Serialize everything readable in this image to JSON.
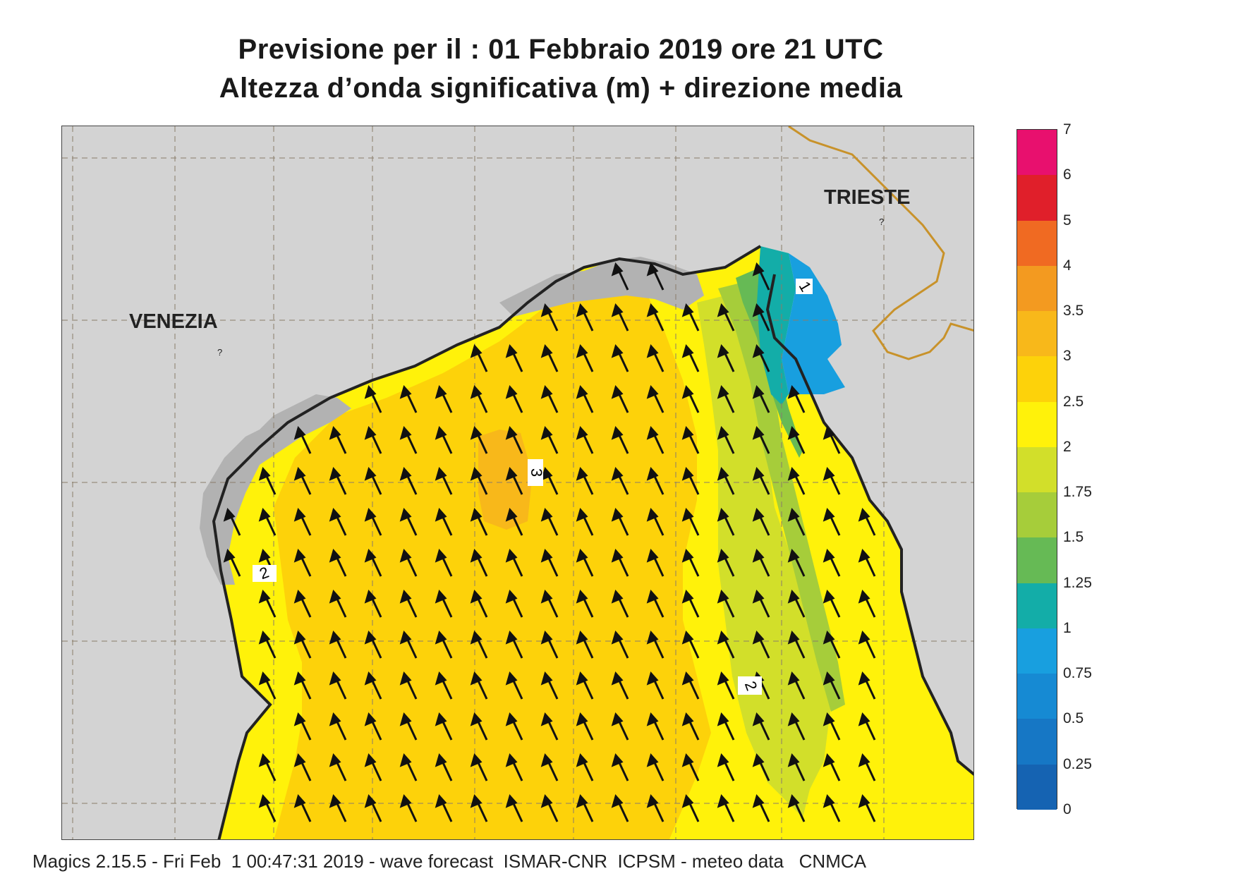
{
  "title_line1": "Previsione per il  :  01  Febbraio 2019   ore 21 UTC",
  "title_line2": "Altezza d’onda significativa (m) + direzione media",
  "footer": "Magics 2.15.5 - Fri Feb  1 00:47:31 2019 - wave forecast  ISMAR-CNR  ICPSM - meteo data   CNMCA",
  "cities": {
    "venezia": "VENEZIA",
    "trieste": "TRIESTE"
  },
  "contour_labels": [
    "3",
    "2",
    "2",
    "1"
  ],
  "land_marks": [
    "?",
    "?"
  ],
  "colorbar": {
    "labels": [
      "7",
      "6",
      "5",
      "4",
      "3.5",
      "3",
      "2.5",
      "2",
      "1.75",
      "1.5",
      "1.25",
      "1",
      "0.75",
      "0.5",
      "0.25",
      "0"
    ],
    "colors": [
      "#e8106e",
      "#e01f2a",
      "#f06a22",
      "#f39a20",
      "#f8b81a",
      "#fdd20a",
      "#fff20a",
      "#d2df2a",
      "#a6cd3a",
      "#66ba55",
      "#13ada8",
      "#189fdf",
      "#168ad3",
      "#1677c5",
      "#1563b2"
    ]
  },
  "map_colors": {
    "land": "#d3d3d3",
    "land_dark": "#b2b2b2",
    "sea_low": "#fff20a",
    "sea_mid": "#fdd20a",
    "sea_high": "#f8b81a",
    "band_175": "#d2df2a",
    "band_15": "#a6cd3a",
    "band_125": "#66ba55",
    "band_1": "#13ada8",
    "band_075": "#189fdf",
    "border": "#c8922a"
  },
  "wave_direction": "north-northwest"
}
